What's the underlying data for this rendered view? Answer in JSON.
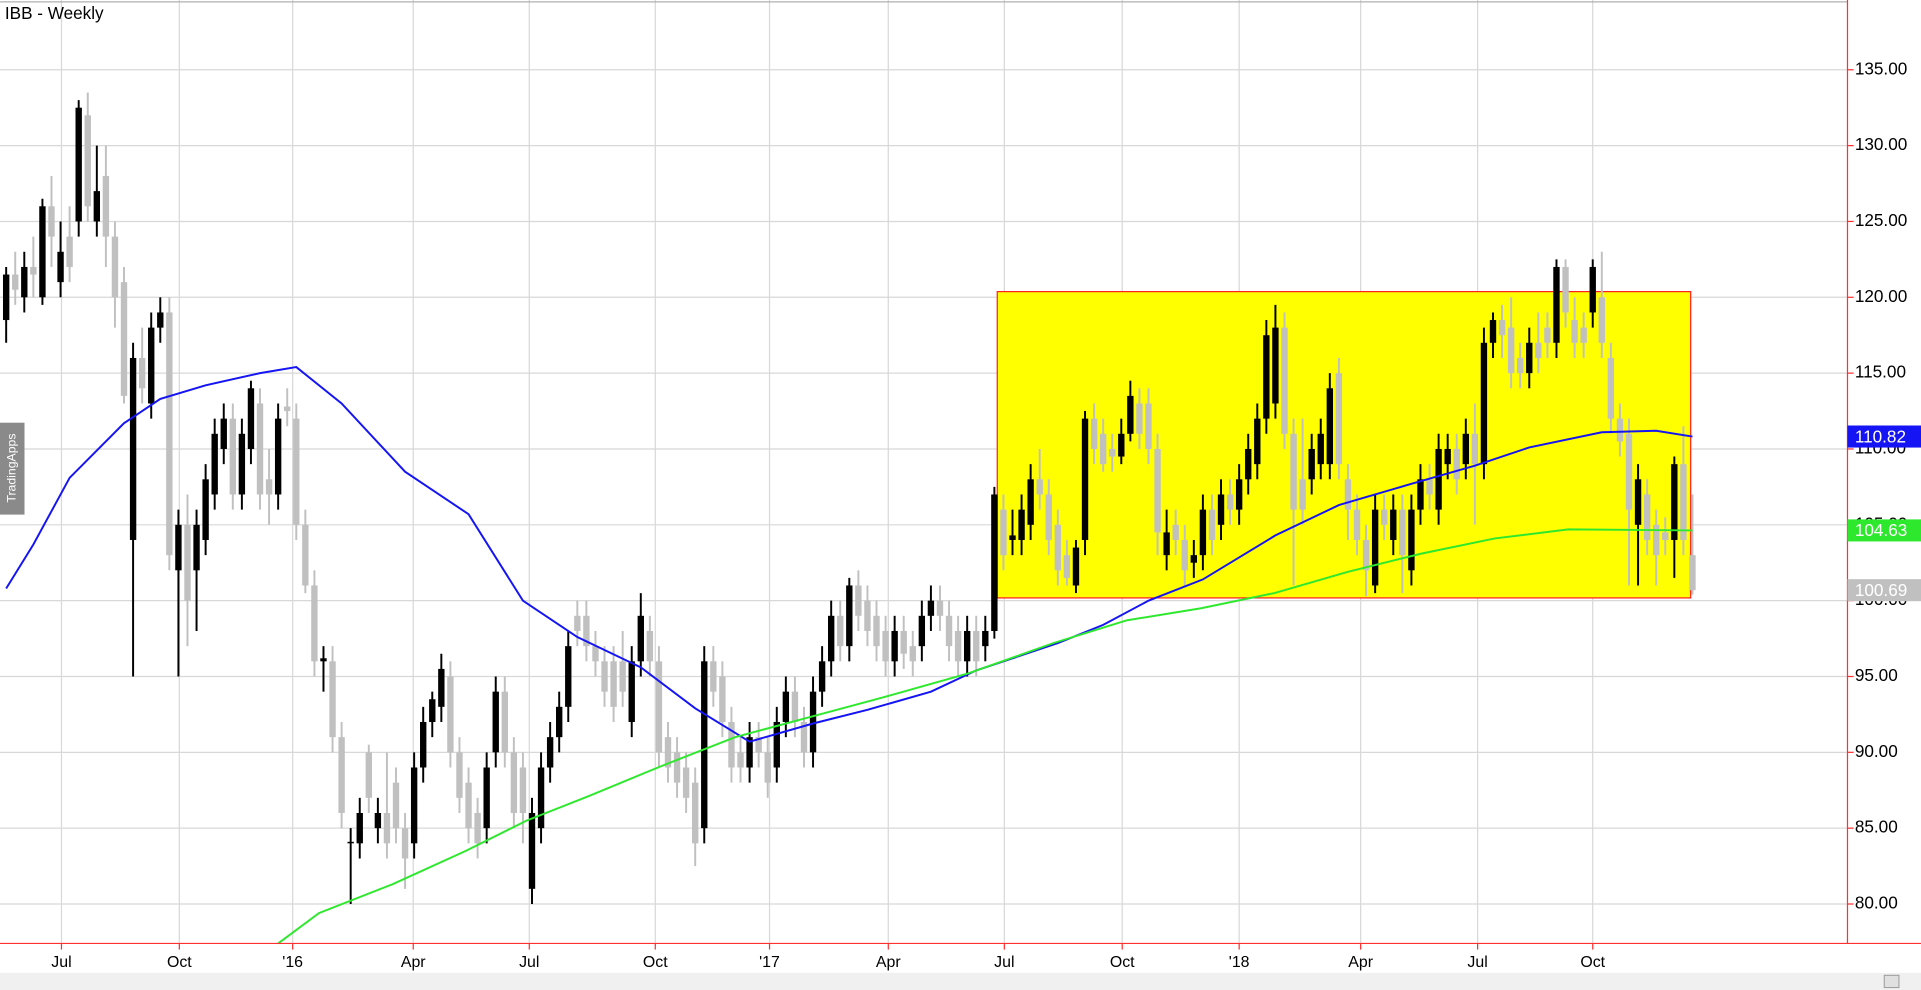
{
  "chart_data": {
    "type": "candlestick",
    "title": "IBB - Weekly",
    "watermark": "TradingApps",
    "up_color": "#000000",
    "down_color": "#c0c0c0",
    "grid": true,
    "xlim": [
      -0.68,
      203.1
    ],
    "ylim": [
      77.4,
      139.6
    ],
    "xticks": [
      {
        "value": 6.1,
        "label": "Jul"
      },
      {
        "value": 19.1,
        "label": "Oct"
      },
      {
        "value": 31.6,
        "label": "'16"
      },
      {
        "value": 44.9,
        "label": "Apr"
      },
      {
        "value": 57.7,
        "label": "Jul"
      },
      {
        "value": 71.6,
        "label": "Oct"
      },
      {
        "value": 84.2,
        "label": "'17"
      },
      {
        "value": 97.3,
        "label": "Apr"
      },
      {
        "value": 110.1,
        "label": "Jul"
      },
      {
        "value": 123.1,
        "label": "Oct"
      },
      {
        "value": 136,
        "label": "'18"
      },
      {
        "value": 149.4,
        "label": "Apr"
      },
      {
        "value": 162.3,
        "label": "Jul"
      },
      {
        "value": 175,
        "label": "Oct"
      }
    ],
    "yticks": [
      {
        "value": 80,
        "label": "80.00"
      },
      {
        "value": 85,
        "label": "85.00"
      },
      {
        "value": 90,
        "label": "90.00"
      },
      {
        "value": 95,
        "label": "95.00"
      },
      {
        "value": 100,
        "label": "100.00"
      },
      {
        "value": 105,
        "label": "105.00"
      },
      {
        "value": 110,
        "label": "110.00"
      },
      {
        "value": 115,
        "label": "115.00"
      },
      {
        "value": 120,
        "label": "120.00"
      },
      {
        "value": 125,
        "label": "125.00"
      },
      {
        "value": 130,
        "label": "130.00"
      },
      {
        "value": 135,
        "label": "135.00"
      }
    ],
    "open": [
      118.5,
      121.5,
      120,
      122,
      120,
      126,
      121,
      124,
      125,
      132,
      125,
      128,
      124,
      121,
      104,
      116,
      113,
      118,
      119,
      102,
      105,
      102,
      104,
      107,
      110,
      112,
      107,
      110,
      113,
      108,
      107,
      112.8,
      112,
      105,
      101,
      96,
      96,
      91,
      84,
      84,
      90,
      85,
      86,
      88,
      85,
      84,
      89,
      92,
      93,
      95,
      90,
      88,
      86,
      85,
      90,
      94,
      90,
      89,
      81,
      85,
      89,
      91,
      93,
      99,
      99,
      97,
      96,
      96,
      96,
      92,
      96,
      98,
      96,
      91,
      90,
      89,
      88,
      85,
      96,
      95,
      92,
      90,
      89,
      91,
      90,
      89,
      92,
      94,
      92,
      90,
      94,
      96,
      99,
      97,
      101,
      100,
      99,
      98,
      96,
      98,
      97,
      97,
      99,
      100,
      99,
      98,
      96,
      98,
      97,
      98,
      106,
      104,
      104,
      105,
      108,
      107,
      105,
      103,
      101,
      104,
      112,
      111,
      110,
      109.5,
      111,
      113,
      113,
      110,
      103,
      105,
      104,
      102.5,
      103,
      106,
      105,
      107,
      106,
      108,
      109,
      112,
      113,
      118,
      111,
      108,
      108,
      109,
      109,
      115,
      108,
      106,
      104,
      101,
      106,
      104,
      106,
      102,
      106,
      108,
      106,
      109,
      110,
      109,
      111,
      109,
      117,
      118.5,
      118,
      116,
      115,
      117,
      118,
      117,
      122,
      118.5,
      118,
      119,
      120,
      116,
      112,
      111,
      105,
      107,
      105,
      104.5,
      104,
      109,
      103
    ],
    "high": [
      122,
      123,
      123,
      124,
      126.5,
      128,
      125,
      126,
      133,
      133.5,
      130,
      130,
      125,
      122,
      117,
      118,
      119,
      120,
      120,
      106,
      107,
      106,
      109,
      112,
      113,
      113,
      112,
      114.5,
      114,
      110,
      113,
      114,
      113,
      106,
      102,
      97,
      97,
      92,
      85,
      87,
      90.5,
      87,
      90,
      89,
      86,
      90,
      93,
      94,
      96.5,
      96,
      91,
      89,
      87,
      90,
      95,
      95,
      91,
      90,
      87,
      90,
      92,
      94,
      98,
      100,
      100,
      98,
      97,
      97,
      98,
      97,
      100.5,
      99,
      97,
      92,
      91,
      90,
      89,
      97,
      97,
      96,
      93,
      91,
      92,
      92,
      91,
      93,
      95,
      95,
      93,
      95,
      97,
      100,
      100,
      101.5,
      102,
      101,
      100,
      99,
      99,
      99,
      98,
      100,
      101,
      101,
      100,
      99,
      99,
      99,
      99,
      107.5,
      107,
      106,
      107,
      109,
      110,
      108,
      106,
      104,
      104,
      112.5,
      113,
      112,
      111,
      112,
      114.5,
      114,
      114,
      111,
      106,
      106,
      105,
      104,
      107,
      107,
      108,
      108,
      109,
      111,
      113,
      118.5,
      119.5,
      119,
      112,
      112,
      111,
      112,
      115,
      116,
      109,
      107,
      105,
      107,
      107,
      107,
      107,
      107,
      109,
      109,
      111,
      111,
      111,
      112,
      113,
      118,
      119,
      119.5,
      120,
      117,
      118,
      119,
      119,
      122.5,
      122.5,
      120,
      119,
      122.5,
      123,
      117,
      113,
      112,
      109,
      108,
      106,
      105.5,
      109.5,
      111.5,
      107
    ],
    "low": [
      117,
      119.5,
      119,
      120,
      119.5,
      122,
      120,
      121,
      124,
      125,
      124,
      122,
      118,
      113,
      95,
      113,
      112,
      117,
      102,
      95,
      97,
      98,
      103,
      106,
      109,
      106,
      106,
      109,
      106,
      105,
      106,
      111.5,
      104,
      100.5,
      95,
      94,
      90,
      85,
      80,
      83,
      86,
      84,
      83,
      84,
      81,
      83,
      88,
      91,
      92,
      89,
      86,
      84,
      83,
      84,
      89,
      89,
      85,
      84,
      80,
      84,
      88,
      90,
      92,
      97,
      96,
      95,
      93,
      92,
      93,
      91,
      95,
      95,
      89,
      88,
      87,
      86,
      82.5,
      84,
      93,
      91,
      88,
      88,
      88,
      89,
      87,
      88,
      91,
      91,
      89,
      89,
      93,
      95,
      96,
      96,
      98,
      97,
      96,
      95,
      95,
      95.5,
      95,
      96,
      98,
      98,
      96,
      95,
      95,
      95,
      96,
      97.5,
      102,
      103,
      103,
      104,
      106,
      103,
      101,
      101,
      100.5,
      103,
      109,
      108.5,
      108.5,
      109,
      110.5,
      110,
      109,
      103,
      102,
      103,
      101,
      101.5,
      102,
      103,
      104,
      105,
      105,
      107,
      108,
      111,
      112,
      110,
      101,
      105,
      107,
      108,
      108,
      108,
      104,
      103,
      100.3,
      100.5,
      104,
      103,
      100.5,
      101,
      105,
      106,
      105,
      108,
      107,
      108,
      105,
      108,
      116,
      116,
      114,
      114,
      114,
      115,
      116,
      116,
      118,
      116,
      116,
      118,
      116,
      111,
      109.5,
      101,
      101,
      103,
      101,
      103,
      101.5,
      103,
      100.4
    ],
    "close": [
      121.5,
      120.5,
      122,
      121.5,
      126,
      124,
      123,
      122,
      132.5,
      126,
      127,
      124,
      120,
      113.5,
      116,
      114,
      118,
      119,
      103,
      105,
      100,
      105,
      108,
      111,
      112,
      107,
      111,
      114,
      107,
      107,
      112,
      112.5,
      105,
      101,
      96,
      96.2,
      91,
      86,
      84.1,
      86,
      87,
      86,
      84,
      85,
      83,
      89,
      92,
      93.5,
      95.5,
      90,
      87,
      85,
      84,
      89,
      94,
      90,
      86,
      86,
      86,
      89,
      91,
      93,
      97,
      98,
      97,
      96,
      94,
      93,
      94,
      96,
      99,
      96,
      90,
      89,
      88,
      87,
      84,
      96,
      94,
      92,
      89,
      89,
      91,
      90,
      88,
      92,
      94,
      92,
      90,
      94,
      96,
      99,
      97,
      101,
      99,
      98,
      97,
      96,
      98,
      96.5,
      96,
      99,
      100,
      99,
      97,
      96,
      98,
      96,
      98,
      107,
      103,
      104.3,
      106,
      108,
      107,
      104,
      102,
      101.5,
      103.5,
      112,
      110,
      109,
      109.5,
      111,
      113.5,
      111,
      110,
      104.5,
      104.5,
      104,
      102,
      103,
      106,
      104,
      107,
      106,
      108,
      110,
      112,
      117.5,
      118,
      111,
      106,
      106,
      110,
      111,
      114,
      109,
      106,
      104,
      102,
      106,
      105,
      106,
      103,
      106,
      108,
      107,
      110,
      110,
      108,
      111,
      109,
      117,
      118.5,
      117.5,
      115,
      115,
      117,
      116,
      117,
      122,
      119,
      117,
      117,
      122,
      117,
      112,
      110.5,
      106,
      108,
      104,
      103,
      104,
      109,
      104,
      100.69
    ],
    "series": [
      {
        "name": "blue",
        "color": "#1414f5",
        "x": [
          0,
          3,
          7,
          13,
          17,
          22,
          28,
          32,
          37,
          44,
          51,
          57,
          63,
          70,
          76,
          82,
          89,
          95,
          102,
          107,
          116,
          121,
          126,
          132,
          140,
          147,
          155,
          162,
          168,
          176,
          182,
          186
        ],
        "values": [
          100.8,
          103.7,
          108.1,
          111.7,
          113.3,
          114.2,
          115,
          115.4,
          113,
          108.5,
          105.7,
          100,
          97.6,
          95.6,
          92.9,
          90.7,
          91.9,
          92.8,
          94,
          95.4,
          97.2,
          98.4,
          100,
          101.4,
          104.3,
          106.3,
          107.7,
          108.9,
          110.1,
          111.1,
          111.2,
          110.82
        ]
      },
      {
        "name": "green",
        "color": "#2ee82e",
        "x": [
          30,
          34.5,
          42.6,
          50.7,
          57.4,
          64.2,
          72.3,
          80.4,
          88.5,
          96.6,
          106.1,
          115.5,
          123.6,
          131.8,
          139.9,
          148,
          156.1,
          164.2,
          172.3,
          186
        ],
        "values": [
          77.4,
          79.4,
          81.3,
          83.5,
          85.5,
          87.1,
          89.1,
          91,
          92.3,
          93.6,
          95.2,
          97.2,
          98.7,
          99.5,
          100.5,
          101.9,
          103.1,
          104.1,
          104.7,
          104.63
        ]
      }
    ]
  }
}
